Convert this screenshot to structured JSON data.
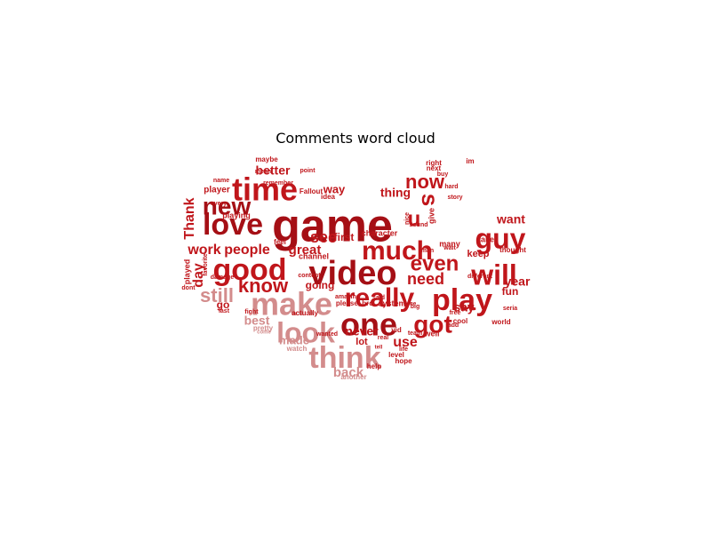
{
  "chart_data": {
    "type": "wordcloud",
    "title": "Comments word cloud",
    "colors": {
      "primary": "#c0161b",
      "dark": "#a50f15",
      "light": "#d38c8c",
      "pale": "#e7b3b3"
    },
    "words": [
      {
        "text": "game",
        "weight": 1.0
      },
      {
        "text": "video",
        "weight": 0.8
      },
      {
        "text": "make",
        "weight": 0.75
      },
      {
        "text": "time",
        "weight": 0.68
      },
      {
        "text": "one",
        "weight": 0.68
      },
      {
        "text": "think",
        "weight": 0.66
      },
      {
        "text": "love",
        "weight": 0.64
      },
      {
        "text": "good",
        "weight": 0.64
      },
      {
        "text": "much",
        "weight": 0.64
      },
      {
        "text": "look",
        "weight": 0.62
      },
      {
        "text": "really",
        "weight": 0.6
      },
      {
        "text": "play",
        "weight": 0.62
      },
      {
        "text": "will",
        "weight": 0.58
      },
      {
        "text": "guy",
        "weight": 0.58
      },
      {
        "text": "got",
        "weight": 0.56
      },
      {
        "text": "new",
        "weight": 0.52
      },
      {
        "text": "now",
        "weight": 0.46
      },
      {
        "text": "even",
        "weight": 0.46
      },
      {
        "text": "know",
        "weight": 0.44
      },
      {
        "text": "u",
        "weight": 0.44
      },
      {
        "text": "s",
        "weight": 0.44
      },
      {
        "text": "still",
        "weight": 0.4
      },
      {
        "text": "people",
        "weight": 0.38
      },
      {
        "text": "need",
        "weight": 0.36
      },
      {
        "text": "see",
        "weight": 0.34
      },
      {
        "text": "use",
        "weight": 0.32
      },
      {
        "text": "work",
        "weight": 0.3
      },
      {
        "text": "Thank",
        "weight": 0.3
      },
      {
        "text": "great",
        "weight": 0.3
      },
      {
        "text": "day",
        "weight": 0.3
      },
      {
        "text": "back",
        "weight": 0.3
      },
      {
        "text": "better",
        "weight": 0.3
      },
      {
        "text": "thing",
        "weight": 0.3
      },
      {
        "text": "want",
        "weight": 0.28
      },
      {
        "text": "say",
        "weight": 0.26
      },
      {
        "text": "year",
        "weight": 0.26
      },
      {
        "text": "never",
        "weight": 0.26
      },
      {
        "text": "best",
        "weight": 0.26
      },
      {
        "text": "way",
        "weight": 0.24
      },
      {
        "text": "first",
        "weight": 0.24
      },
      {
        "text": "keep",
        "weight": 0.22
      },
      {
        "text": "made",
        "weight": 0.22
      },
      {
        "text": "going",
        "weight": 0.22
      },
      {
        "text": "fun",
        "weight": 0.22
      },
      {
        "text": "go",
        "weight": 0.22
      },
      {
        "text": "lot",
        "weight": 0.2
      },
      {
        "text": "played",
        "weight": 0.18
      },
      {
        "text": "player",
        "weight": 0.18
      },
      {
        "text": "playing",
        "weight": 0.16
      },
      {
        "text": "channel",
        "weight": 0.16
      },
      {
        "text": "character",
        "weight": 0.14
      },
      {
        "text": "system",
        "weight": 0.14
      },
      {
        "text": "please_bro",
        "weight": 0.14
      },
      {
        "text": "actually",
        "weight": 0.14
      },
      {
        "text": "watch",
        "weight": 0.14
      },
      {
        "text": "pretty",
        "weight": 0.14
      },
      {
        "text": "take",
        "weight": 0.14
      },
      {
        "text": "many",
        "weight": 0.14
      },
      {
        "text": "thought",
        "weight": 0.14
      },
      {
        "text": "world",
        "weight": 0.14
      },
      {
        "text": "well",
        "weight": 0.14
      },
      {
        "text": "help",
        "weight": 0.12
      },
      {
        "text": "another",
        "weight": 0.12
      },
      {
        "text": "level",
        "weight": 0.12
      },
      {
        "text": "feel",
        "weight": 0.12
      },
      {
        "text": "idea",
        "weight": 0.12
      },
      {
        "text": "Fallout",
        "weight": 0.12
      },
      {
        "text": "maybe",
        "weight": 0.1
      },
      {
        "text": "name",
        "weight": 0.1
      },
      {
        "text": "right",
        "weight": 0.1
      },
      {
        "text": "next",
        "weight": 0.1
      },
      {
        "text": "im",
        "weight": 0.1
      },
      {
        "text": "hard",
        "weight": 0.1
      },
      {
        "text": "sound",
        "weight": 0.1
      },
      {
        "text": "said",
        "weight": 0.1
      },
      {
        "text": "amazing",
        "weight": 0.1
      },
      {
        "text": "content",
        "weight": 0.1
      },
      {
        "text": "fight",
        "weight": 0.1
      },
      {
        "text": "last",
        "weight": 0.1
      },
      {
        "text": "team",
        "weight": 0.1
      },
      {
        "text": "wanted",
        "weight": 0.1
      },
      {
        "text": "vid",
        "weight": 0.1
      },
      {
        "text": "cool",
        "weight": 0.1
      },
      {
        "text": "free",
        "weight": 0.1
      },
      {
        "text": "add",
        "weight": 0.1
      },
      {
        "text": "different",
        "weight": 0.1
      },
      {
        "text": "favorite",
        "weight": 0.1
      },
      {
        "text": "damage",
        "weight": 0.1
      },
      {
        "text": "dont",
        "weight": 0.1
      },
      {
        "text": "every",
        "weight": 0.1
      },
      {
        "text": "mean",
        "weight": 0.1
      },
      {
        "text": "remember",
        "weight": 0.1
      },
      {
        "text": "point",
        "weight": 0.1
      },
      {
        "text": "buy",
        "weight": 0.1
      },
      {
        "text": "wait",
        "weight": 0.1
      },
      {
        "text": "big",
        "weight": 0.1
      },
      {
        "text": "come",
        "weight": 0.1
      },
      {
        "text": "nice",
        "weight": 0.1
      },
      {
        "text": "give",
        "weight": 0.1
      },
      {
        "text": "real",
        "weight": 0.1
      },
      {
        "text": "tell",
        "weight": 0.1
      },
      {
        "text": "gone",
        "weight": 0.1
      },
      {
        "text": "seria",
        "weight": 0.1
      },
      {
        "text": "story",
        "weight": 0.1
      },
      {
        "text": "man",
        "weight": 0.1
      },
      {
        "text": "life",
        "weight": 0.1
      },
      {
        "text": "hope",
        "weight": 0.12
      }
    ]
  }
}
